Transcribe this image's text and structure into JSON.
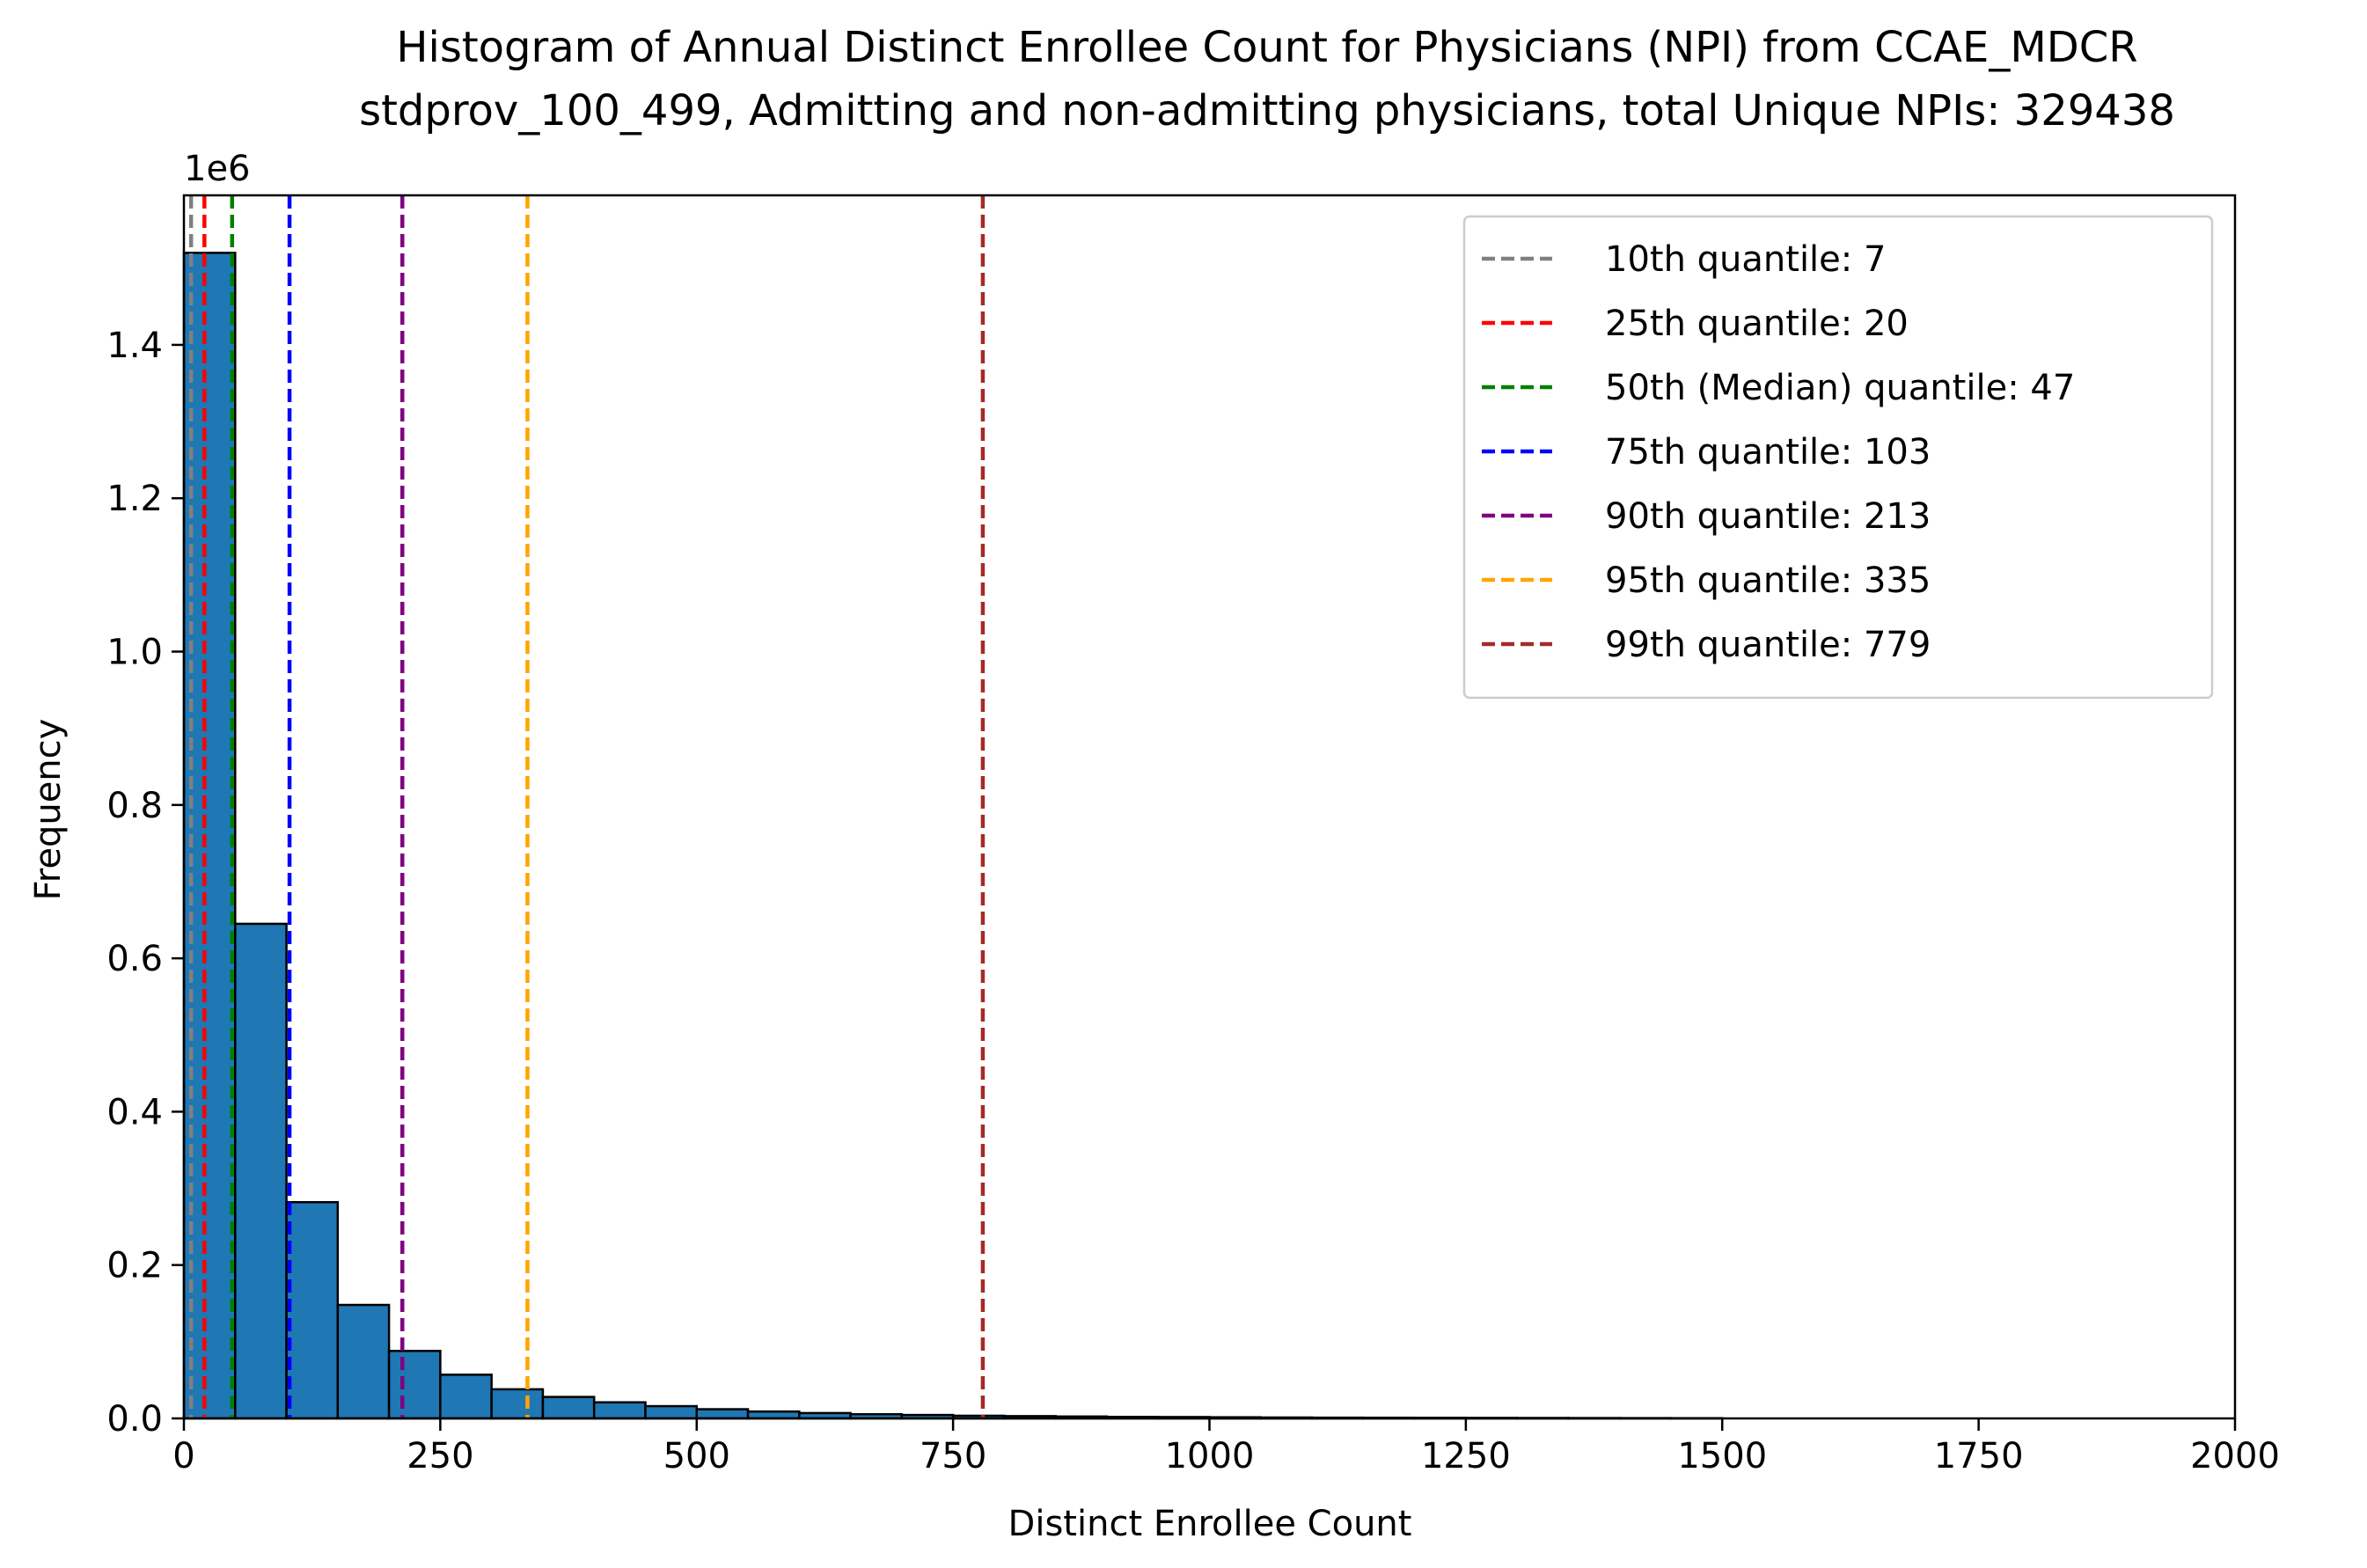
{
  "chart_data": {
    "type": "bar",
    "title_line1": "Histogram of Annual Distinct Enrollee Count for Physicians (NPI) from CCAE_MDCR",
    "title_line2": "stdprov_100_499, Admitting and non-admitting physicians, total Unique NPIs: 329438",
    "xlabel": "Distinct Enrollee Count",
    "ylabel": "Frequency",
    "y_offset_label": "1e6",
    "xlim": [
      0,
      2000
    ],
    "ylim": [
      0,
      1.595
    ],
    "x_ticks": [
      0,
      250,
      500,
      750,
      1000,
      1250,
      1500,
      1750,
      2000
    ],
    "x_tick_labels": [
      "0",
      "250",
      "500",
      "750",
      "1000",
      "1250",
      "1500",
      "1750",
      "2000"
    ],
    "y_ticks": [
      0.0,
      0.2,
      0.4,
      0.6,
      0.8,
      1.0,
      1.2,
      1.4
    ],
    "y_tick_labels": [
      "0.0",
      "0.2",
      "0.4",
      "0.6",
      "0.8",
      "1.0",
      "1.2",
      "1.4"
    ],
    "bin_width": 50,
    "bin_starts": [
      0,
      50,
      100,
      150,
      200,
      250,
      300,
      350,
      400,
      450,
      500,
      550,
      600,
      650,
      700,
      750,
      800,
      850,
      900,
      950,
      1000,
      1050,
      1100,
      1150,
      1200,
      1250,
      1300,
      1350,
      1400,
      1450
    ],
    "values": [
      1.52,
      0.645,
      0.282,
      0.148,
      0.088,
      0.057,
      0.038,
      0.028,
      0.021,
      0.016,
      0.012,
      0.009,
      0.007,
      0.0055,
      0.0045,
      0.0035,
      0.003,
      0.0025,
      0.002,
      0.0018,
      0.0015,
      0.0012,
      0.001,
      0.0009,
      0.0008,
      0.0007,
      0.0006,
      0.0005,
      0.0004,
      0.0003
    ],
    "bar_color": "#1f77b4",
    "bar_edge_color": "#000000",
    "quantile_lines": [
      {
        "label": "10th quantile: 7",
        "value": 7,
        "color": "#808080"
      },
      {
        "label": "25th quantile: 20",
        "value": 20,
        "color": "#ff0000"
      },
      {
        "label": "50th (Median) quantile: 47",
        "value": 47,
        "color": "#008000"
      },
      {
        "label": "75th quantile: 103",
        "value": 103,
        "color": "#0000ff"
      },
      {
        "label": "90th quantile: 213",
        "value": 213,
        "color": "#800080"
      },
      {
        "label": "95th quantile: 335",
        "value": 335,
        "color": "#ffa500"
      },
      {
        "label": "99th quantile: 779",
        "value": 779,
        "color": "#a52a2a"
      }
    ],
    "legend_position": "top-right",
    "grid": false
  }
}
